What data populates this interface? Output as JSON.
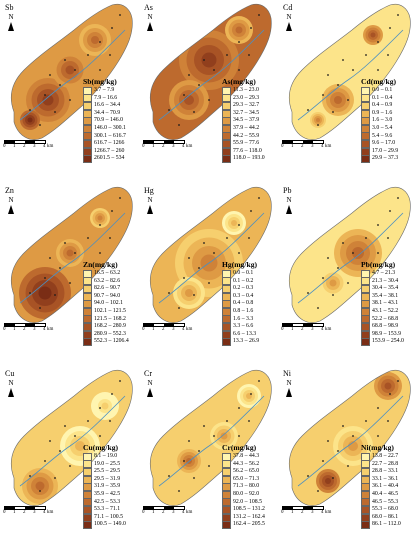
{
  "panels": [
    {
      "element": "Sb",
      "title": "Sb(mg/kg)",
      "classes": [
        "3.7 – 7.9",
        "7.9 – 16.6",
        "16.6 – 34.4",
        "34.4 – 70.9",
        "70.9 – 146.0",
        "146.0 – 300.1",
        "300.1 – 616.7",
        "616.7 – 1266",
        "1266.7 – 260",
        "2601.5 – 534"
      ],
      "colors": [
        "#fff5b0",
        "#fce48a",
        "#f6cf6e",
        "#ecb556",
        "#de9a44",
        "#cf8238",
        "#bd6a2e",
        "#a85325",
        "#913f1d",
        "#7a2d15"
      ]
    },
    {
      "element": "As",
      "title": "As(mg/kg)",
      "classes": [
        "11.3 – 23.0",
        "23.0 – 29.3",
        "29.3 – 32.7",
        "32.7 – 34.5",
        "34.5 – 37.9",
        "37.9 – 44.2",
        "44.2 – 55.9",
        "55.9 – 77.6",
        "77.6 – 118.0",
        "118.0 – 193.0"
      ],
      "colors": [
        "#fff5b0",
        "#fce48a",
        "#f6cf6e",
        "#ecb556",
        "#de9a44",
        "#cf8238",
        "#bd6a2e",
        "#a85325",
        "#913f1d",
        "#7a2d15"
      ]
    },
    {
      "element": "Cd",
      "title": "Cd(mg/kg)",
      "classes": [
        "0.0 – 0.1",
        "0.1 – 0.4",
        "0.4 – 0.9",
        "0.9 – 1.6",
        "1.6 – 3.0",
        "3.0 – 5.4",
        "5.4 – 9.6",
        "9.6 – 17.0",
        "17.0 – 29.9",
        "29.9 – 37.3"
      ],
      "colors": [
        "#fff5b0",
        "#fce48a",
        "#f6cf6e",
        "#ecb556",
        "#de9a44",
        "#cf8238",
        "#bd6a2e",
        "#a85325",
        "#913f1d",
        "#7a2d15"
      ]
    },
    {
      "element": "Zn",
      "title": "Zn(mg/kg)",
      "classes": [
        "16.5 – 63.2",
        "63.2 – 82.6",
        "82.6 – 90.7",
        "90.7 – 94.0",
        "94.0 – 102.1",
        "102.1 – 121.5",
        "121.5 – 168.2",
        "168.2 – 280.9",
        "280.9 – 552.3",
        "552.3 – 1206.4"
      ],
      "colors": [
        "#fff5b0",
        "#fce48a",
        "#f6cf6e",
        "#ecb556",
        "#de9a44",
        "#cf8238",
        "#bd6a2e",
        "#a85325",
        "#913f1d",
        "#7a2d15"
      ]
    },
    {
      "element": "Hg",
      "title": "Hg(mg/kg)",
      "classes": [
        "0.0 – 0.1",
        "0.1 – 0.2",
        "0.2 – 0.3",
        "0.3 – 0.4",
        "0.4 – 0.8",
        "0.8 – 1.6",
        "1.6 – 3.3",
        "3.3 – 6.6",
        "6.6 – 13.3",
        "13.3 – 26.9"
      ],
      "colors": [
        "#fff5b0",
        "#fce48a",
        "#f6cf6e",
        "#ecb556",
        "#de9a44",
        "#cf8238",
        "#bd6a2e",
        "#a85325",
        "#913f1d",
        "#7a2d15"
      ]
    },
    {
      "element": "Pb",
      "title": "Pb(mg/kg)",
      "classes": [
        "4.7 – 21.3",
        "21.3 – 30.4",
        "30.4 – 35.4",
        "35.4 – 38.1",
        "38.1 – 43.1",
        "43.1 – 52.2",
        "52.2 – 68.8",
        "68.8 – 98.9",
        "98.9 – 153.9",
        "153.9 – 254.0"
      ],
      "colors": [
        "#fff5b0",
        "#fce48a",
        "#f6cf6e",
        "#ecb556",
        "#de9a44",
        "#cf8238",
        "#bd6a2e",
        "#a85325",
        "#913f1d",
        "#7a2d15"
      ]
    },
    {
      "element": "Cu",
      "title": "Cu(mg/kg)",
      "classes": [
        "8.1 – 19.0",
        "19.0 – 25.5",
        "25.5 – 29.5",
        "29.5 – 31.9",
        "31.9 – 35.9",
        "35.9 – 42.5",
        "42.5 – 53.3",
        "53.3 – 71.1",
        "71.1 – 100.5",
        "100.5 – 149.0"
      ],
      "colors": [
        "#fff5b0",
        "#fce48a",
        "#f6cf6e",
        "#ecb556",
        "#de9a44",
        "#cf8238",
        "#bd6a2e",
        "#a85325",
        "#913f1d",
        "#7a2d15"
      ]
    },
    {
      "element": "Cr",
      "title": "Cr(mg/kg)",
      "classes": [
        "37.8 – 44.3",
        "44.3 – 56.2",
        "56.2 – 65.0",
        "65.0 – 71.3",
        "71.3 – 80.0",
        "80.0 – 92.0",
        "92.0 – 108.5",
        "108.5 – 131.2",
        "131.2 – 162.4",
        "162.4 – 205.5"
      ],
      "colors": [
        "#fff5b0",
        "#fce48a",
        "#f6cf6e",
        "#ecb556",
        "#de9a44",
        "#cf8238",
        "#bd6a2e",
        "#a85325",
        "#913f1d",
        "#7a2d15"
      ]
    },
    {
      "element": "Ni",
      "title": "Ni(mg/kg)",
      "classes": [
        "13.8 – 22.7",
        "22.7 – 28.8",
        "28.8 – 33.1",
        "33.1 – 36.1",
        "36.1 – 40.4",
        "40.4 – 46.5",
        "46.5 – 55.3",
        "55.3 – 68.0",
        "68.0 – 86.1",
        "86.1 – 112.0"
      ],
      "colors": [
        "#fff5b0",
        "#fce48a",
        "#f6cf6e",
        "#ecb556",
        "#de9a44",
        "#cf8238",
        "#bd6a2e",
        "#a85325",
        "#913f1d",
        "#7a2d15"
      ]
    }
  ],
  "north_label": "N",
  "scale_labels": [
    "0",
    "1",
    "2",
    "3",
    "4",
    "km"
  ]
}
